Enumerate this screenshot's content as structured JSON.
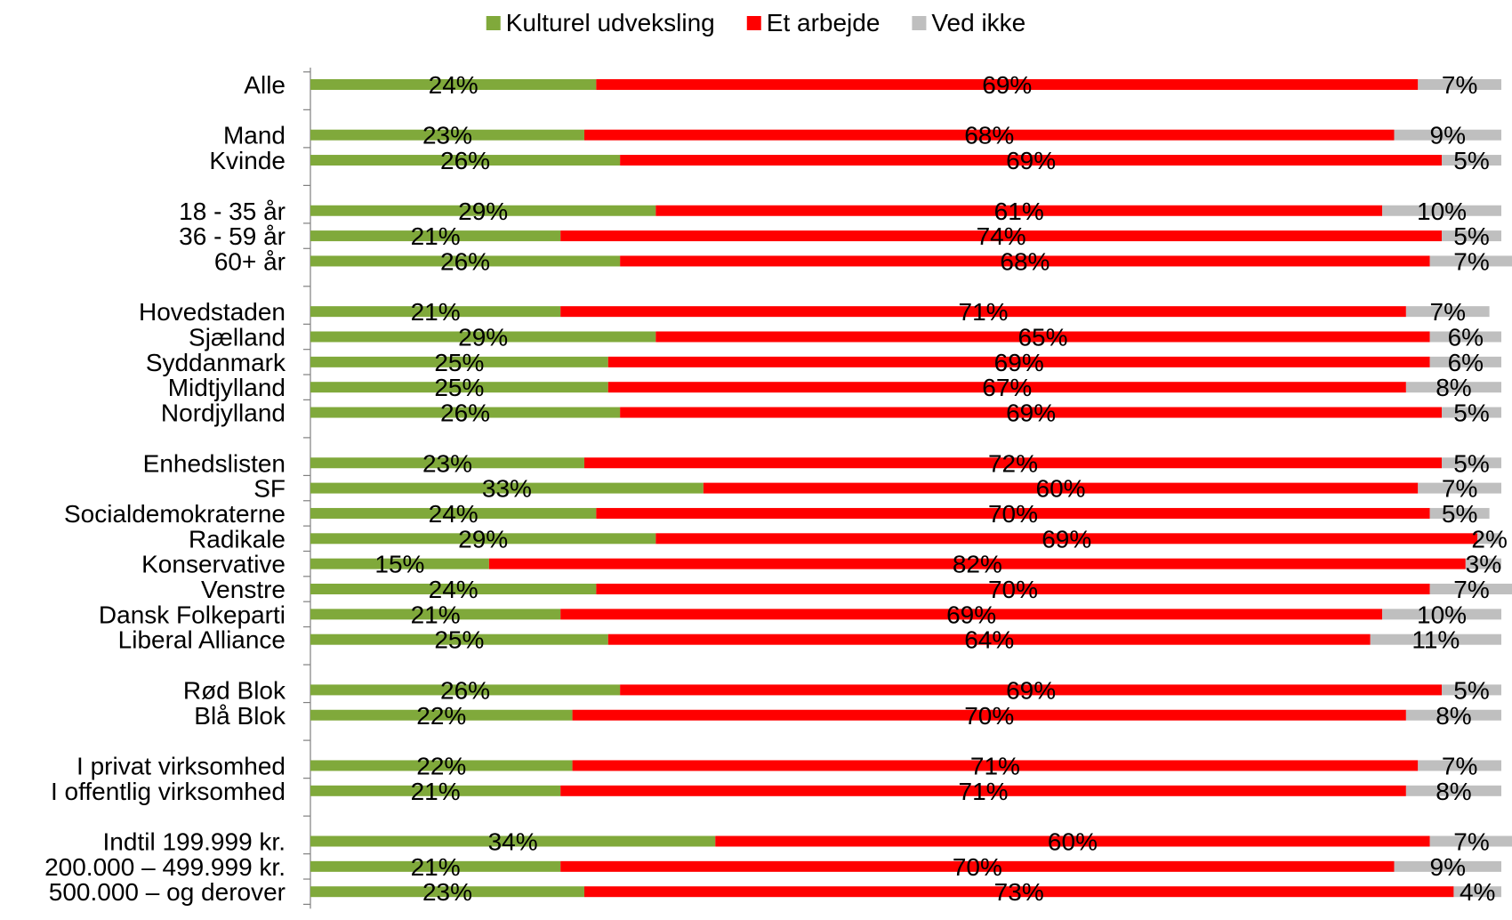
{
  "chart_data": {
    "type": "bar",
    "orientation": "horizontal",
    "stacked": true,
    "percent": true,
    "title": "",
    "xlabel": "",
    "ylabel": "",
    "xlim": [
      0,
      100
    ],
    "grid": false,
    "legend_position": "top",
    "value_format": "{v}%",
    "colors": [
      "#80A93B",
      "#FF0000",
      "#BFBFBF"
    ],
    "categories": [
      "Alle",
      "Mand",
      "Kvinde",
      "18 - 35 år",
      "36 - 59 år",
      "60+ år",
      "Hovedstaden",
      "Sjælland",
      "Syddanmark",
      "Midtjylland",
      "Nordjylland",
      "Enhedslisten",
      "SF",
      "Socialdemokraterne",
      "Radikale",
      "Konservative",
      "Venstre",
      "Dansk Folkeparti",
      "Liberal Alliance",
      "Rød Blok",
      "Blå Blok",
      "I privat virksomhed",
      "I offentlig virksomhed",
      "Indtil 199.999 kr.",
      "200.000 – 499.999 kr.",
      "500.000 – og derover"
    ],
    "groups": [
      1,
      2,
      3,
      5,
      8,
      2,
      2,
      3
    ],
    "series": [
      {
        "name": "Kulturel udveksling",
        "color": "#80A93B",
        "values": [
          24,
          23,
          26,
          29,
          21,
          26,
          21,
          29,
          25,
          25,
          26,
          23,
          33,
          24,
          29,
          15,
          24,
          21,
          25,
          26,
          22,
          22,
          21,
          34,
          21,
          23
        ]
      },
      {
        "name": "Et arbejde",
        "color": "#FF0000",
        "values": [
          69,
          68,
          69,
          61,
          74,
          68,
          71,
          65,
          69,
          67,
          69,
          72,
          60,
          70,
          69,
          82,
          70,
          69,
          64,
          69,
          70,
          71,
          71,
          60,
          70,
          73
        ]
      },
      {
        "name": "Ved ikke",
        "color": "#BFBFBF",
        "values": [
          7,
          9,
          5,
          10,
          5,
          7,
          7,
          6,
          6,
          8,
          5,
          5,
          7,
          5,
          2,
          3,
          7,
          10,
          11,
          5,
          8,
          7,
          8,
          7,
          9,
          4
        ]
      }
    ]
  }
}
